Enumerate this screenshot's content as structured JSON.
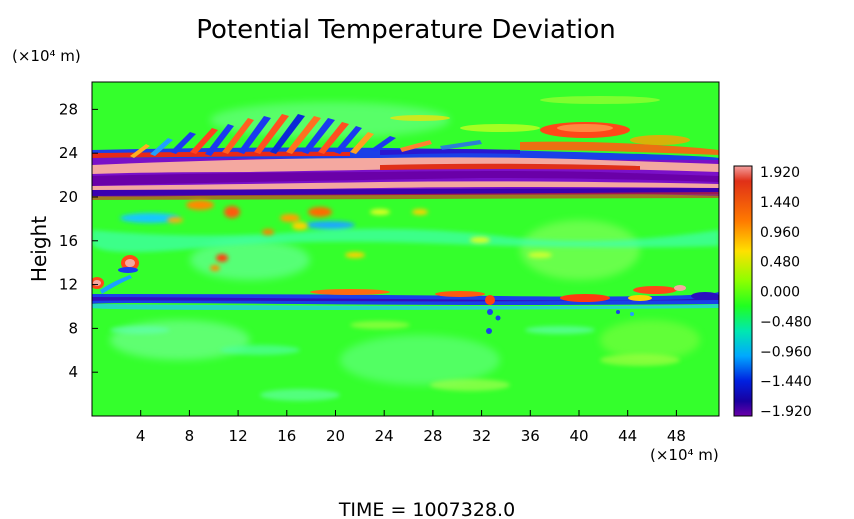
{
  "chart_data": {
    "type": "heatmap",
    "title": "Potential Temperature Deviation",
    "ylabel": "Height",
    "x_unit": "(×10⁴ m)",
    "y_unit": "(×10⁴ m)",
    "x_ticks": [
      4,
      8,
      12,
      16,
      20,
      24,
      28,
      32,
      36,
      40,
      44,
      48
    ],
    "y_ticks": [
      4,
      8,
      12,
      16,
      20,
      24,
      28
    ],
    "xlim": [
      0,
      51.5
    ],
    "ylim": [
      0,
      30.5
    ],
    "colorbar": {
      "labels": [
        "1.920",
        "1.440",
        "0.960",
        "0.480",
        "0.000",
        "−0.480",
        "−0.960",
        "−1.440",
        "−1.920"
      ],
      "values": [
        1.92,
        1.44,
        0.96,
        0.48,
        0.0,
        -0.48,
        -0.96,
        -1.44,
        -1.92
      ],
      "range": [
        -1.92,
        1.92
      ]
    },
    "background_value": 0.1,
    "features": [
      {
        "region": "upper layer",
        "y_range": [
          20.3,
          23.5
        ],
        "pattern": "alternating strong positive (>1.92) and strong negative (<-1.92) bands across full width"
      },
      {
        "region": "wave pattern",
        "y_range": [
          23.5,
          27
        ],
        "x_range": [
          8,
          24
        ],
        "pattern": "tilted wave stripes, alternating +/-"
      },
      {
        "region": "upper positive patch",
        "y_range": [
          25,
          27
        ],
        "x_range": [
          38,
          45
        ],
        "value": 1.5
      },
      {
        "region": "lower layer",
        "y_range": [
          10.2,
          11.2
        ],
        "pattern": "negative band (~-1.2) across full width with positive patches near x=40-50"
      },
      {
        "region": "scattered positive spots",
        "y_range": [
          16,
          19
        ],
        "x_range": [
          8,
          22
        ],
        "value": 1.0
      },
      {
        "region": "left positive blobs",
        "y_range": [
          11,
          14.5
        ],
        "x_range": [
          0,
          4
        ],
        "value": 1.9
      }
    ]
  },
  "footer": {
    "time_text": "TIME  =  1007328.0"
  }
}
